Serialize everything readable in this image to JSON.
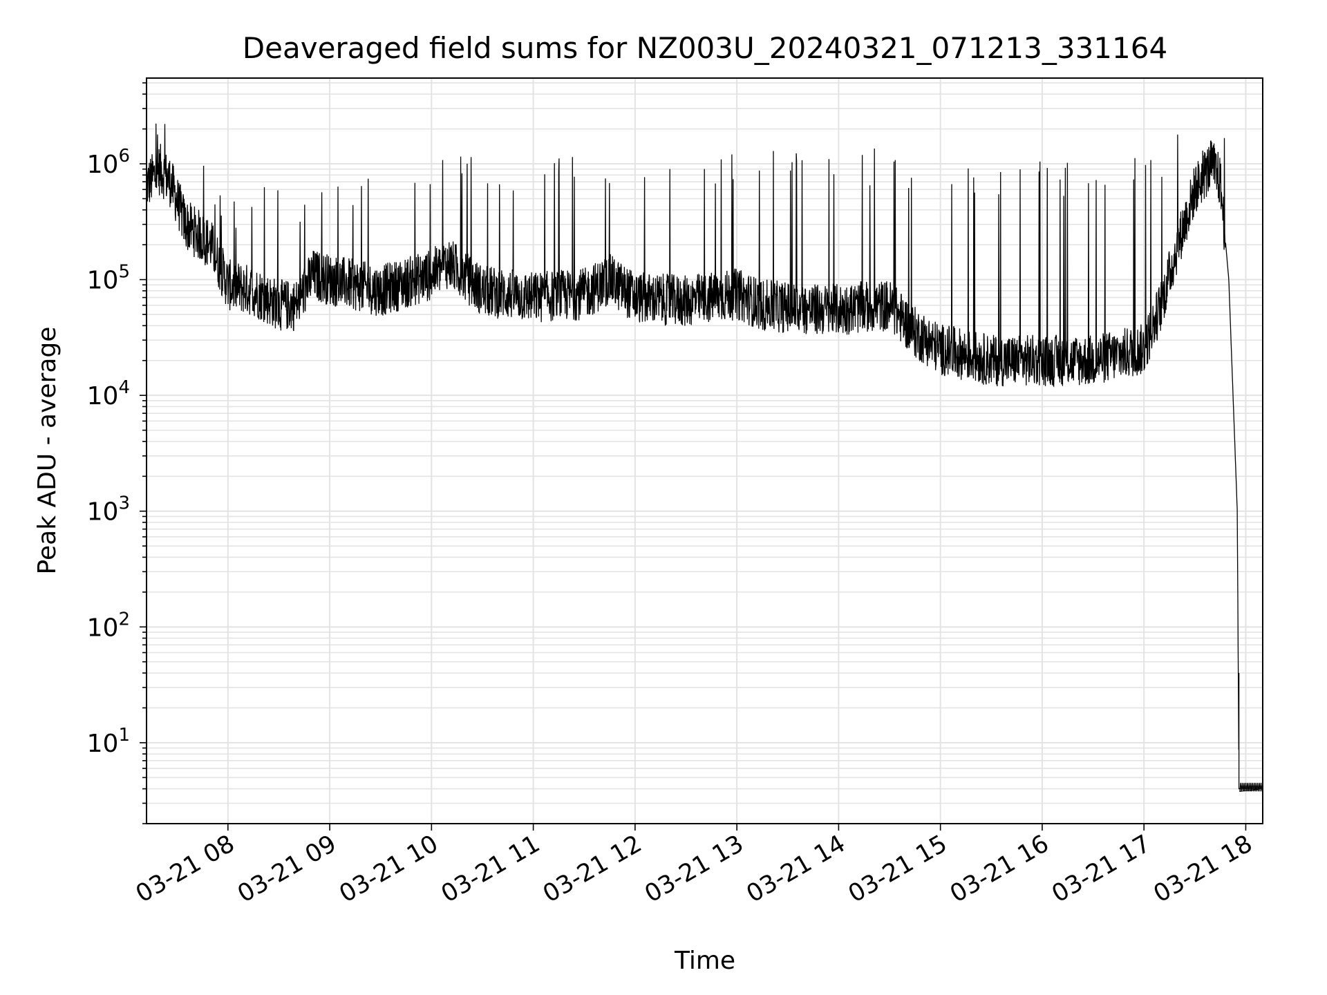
{
  "chart_data": {
    "type": "line",
    "title": "Deaveraged field sums for NZ003U_20240321_071213_331164",
    "xlabel": "Time",
    "ylabel": "Peak ADU - average",
    "yscale": "log",
    "ylim": [
      2,
      5500000
    ],
    "xlim": [
      "03-21 07:12",
      "03-21 18:10"
    ],
    "x_ticks": [
      "03-21 08",
      "03-21 09",
      "03-21 10",
      "03-21 11",
      "03-21 12",
      "03-21 13",
      "03-21 14",
      "03-21 15",
      "03-21 16",
      "03-21 17",
      "03-21 18"
    ],
    "y_ticks": [
      {
        "value": 10,
        "base": "10",
        "exp": "1"
      },
      {
        "value": 100,
        "base": "10",
        "exp": "2"
      },
      {
        "value": 1000,
        "base": "10",
        "exp": "3"
      },
      {
        "value": 10000,
        "base": "10",
        "exp": "4"
      },
      {
        "value": 100000,
        "base": "10",
        "exp": "5"
      },
      {
        "value": 1000000,
        "base": "10",
        "exp": "6"
      }
    ],
    "grid": true,
    "grid_minor": true,
    "line_color": "#000000",
    "grid_color": "#e3e3e3",
    "series": [
      {
        "baseline": [
          [
            "03-21 07:12",
            650000
          ],
          [
            "03-21 07:20",
            900000
          ],
          [
            "03-21 07:26",
            700000
          ],
          [
            "03-21 07:35",
            300000
          ],
          [
            "03-21 07:50",
            200000
          ],
          [
            "03-21 08:00",
            90000
          ],
          [
            "03-21 08:15",
            80000
          ],
          [
            "03-21 08:30",
            60000
          ],
          [
            "03-21 08:40",
            60000
          ],
          [
            "03-21 08:50",
            110000
          ],
          [
            "03-21 09:00",
            100000
          ],
          [
            "03-21 09:30",
            80000
          ],
          [
            "03-21 10:00",
            110000
          ],
          [
            "03-21 10:10",
            140000
          ],
          [
            "03-21 10:30",
            80000
          ],
          [
            "03-21 11:00",
            70000
          ],
          [
            "03-21 11:30",
            75000
          ],
          [
            "03-21 11:45",
            100000
          ],
          [
            "03-21 12:00",
            70000
          ],
          [
            "03-21 12:30",
            65000
          ],
          [
            "03-21 13:00",
            75000
          ],
          [
            "03-21 13:15",
            60000
          ],
          [
            "03-21 13:45",
            55000
          ],
          [
            "03-21 14:00",
            55000
          ],
          [
            "03-21 14:30",
            60000
          ],
          [
            "03-21 14:45",
            35000
          ],
          [
            "03-21 15:00",
            25000
          ],
          [
            "03-21 15:30",
            20000
          ],
          [
            "03-21 16:00",
            20000
          ],
          [
            "03-21 16:30",
            20000
          ],
          [
            "03-21 17:00",
            25000
          ],
          [
            "03-21 17:10",
            60000
          ],
          [
            "03-21 17:20",
            200000
          ],
          [
            "03-21 17:30",
            600000
          ],
          [
            "03-21 17:40",
            1000000
          ],
          [
            "03-21 17:45",
            700000
          ],
          [
            "03-21 17:50",
            100000
          ],
          [
            "03-21 17:55",
            1000
          ],
          [
            "03-21 17:56",
            4
          ]
        ],
        "tail": [
          [
            "03-21 17:56",
            40
          ],
          [
            "03-21 17:56",
            4
          ],
          [
            "03-21 18:10",
            4
          ]
        ],
        "spike_peaks": [
          [
            "03-21 07:22",
            2800000
          ],
          [
            "03-21 08:00",
            600000
          ],
          [
            "03-21 09:00",
            700000
          ],
          [
            "03-21 10:00",
            1200000
          ],
          [
            "03-21 11:00",
            1200000
          ],
          [
            "03-21 12:00",
            1300000
          ],
          [
            "03-21 13:00",
            1500000
          ],
          [
            "03-21 14:00",
            1600000
          ],
          [
            "03-21 15:00",
            1100000
          ],
          [
            "03-21 16:00",
            1100000
          ],
          [
            "03-21 17:00",
            1200000
          ],
          [
            "03-21 17:35",
            2500000
          ],
          [
            "03-21 17:40",
            1800000
          ]
        ]
      }
    ]
  }
}
